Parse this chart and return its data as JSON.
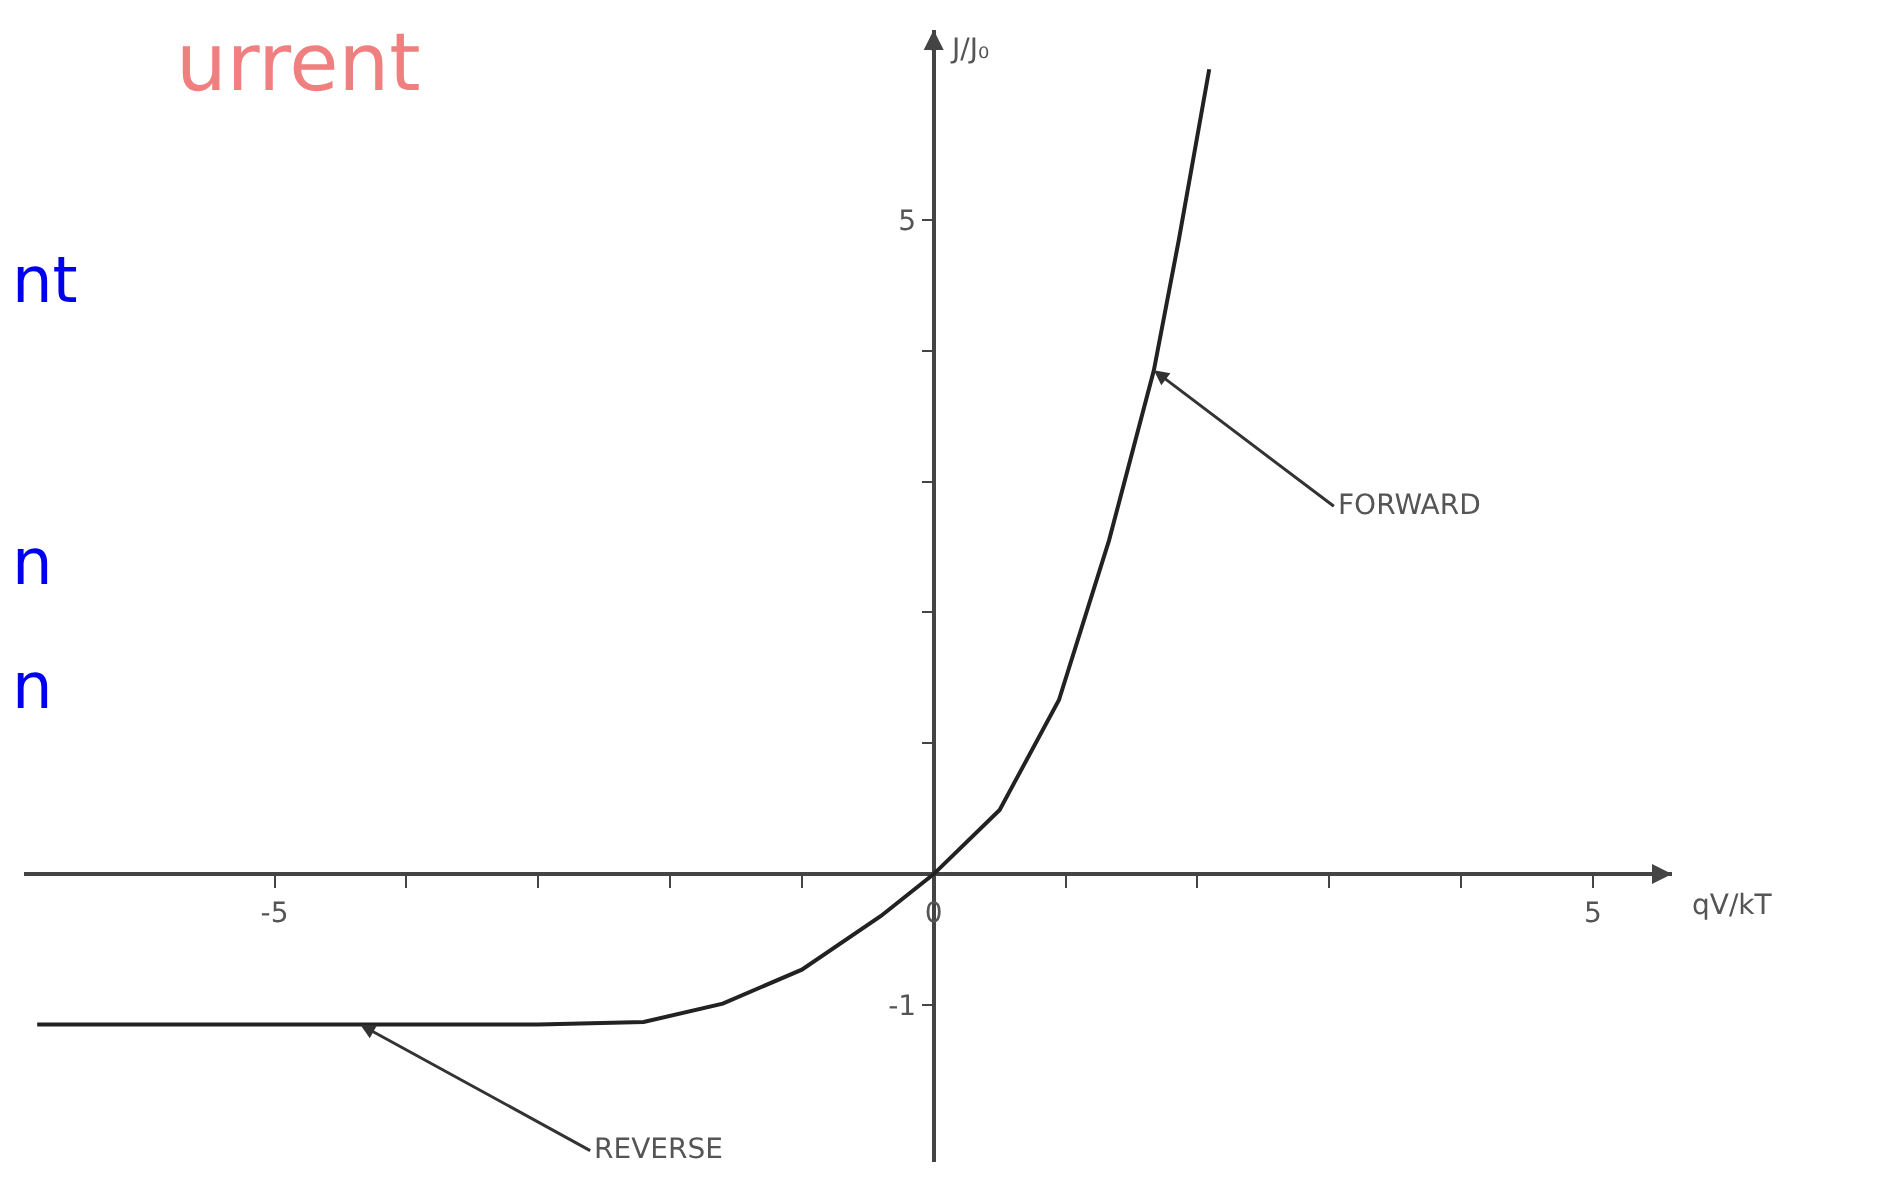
{
  "chart_data": {
    "type": "line",
    "xlabel": "qV/kT",
    "ylabel": "J/J₀",
    "x": [
      -6.8,
      -4.35,
      -3,
      -2.2,
      -1.6,
      -1.0,
      -0.4,
      0,
      0.5,
      0.95,
      1.33,
      1.67,
      1.86,
      2.09
    ],
    "series": [
      {
        "color": "#222222",
        "values": [
          -1.15,
          -1.15,
          -1.15,
          -1.13,
          -0.99,
          -0.73,
          -0.32,
          0,
          0.49,
          1.33,
          2.55,
          3.85,
          4.85,
          6.15
        ]
      }
    ],
    "xlim": [
      -6.9,
      5.6
    ],
    "ylim": [
      -2.2,
      6.45
    ],
    "xticks": [
      -5,
      {
        "value": -4,
        "label": null
      },
      {
        "value": -3,
        "label": null
      },
      {
        "value": -2,
        "label": null
      },
      {
        "value": -1,
        "label": null
      },
      0,
      {
        "value": 1,
        "label": null
      },
      {
        "value": 2,
        "label": null
      },
      {
        "value": 3,
        "label": null
      },
      {
        "value": 4,
        "label": null
      },
      5
    ],
    "yticks": [
      -1,
      {
        "value": 1,
        "label": null
      },
      {
        "value": 2,
        "label": null
      },
      {
        "value": 3,
        "label": null
      },
      {
        "value": 4,
        "label": null
      },
      5
    ],
    "annotations": [
      {
        "text": "FORWARD",
        "x": 1.67,
        "y": 3.85
      },
      {
        "text": "REVERSE",
        "x": -4.35,
        "y": -1.15
      },
      "urrent",
      "nt",
      "n",
      "n"
    ],
    "marker": "none",
    "line_style": "solid"
  }
}
